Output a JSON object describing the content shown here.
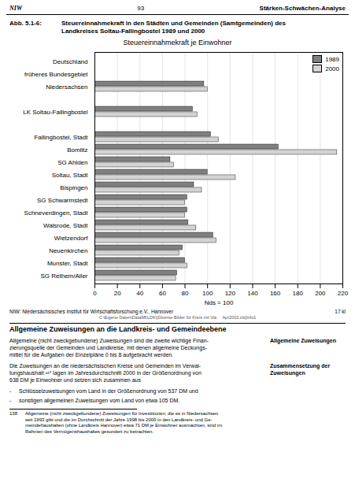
{
  "chart_data": {
    "type": "bar",
    "orientation": "horizontal",
    "title": "Steuereinnahmekraft je Einwohner",
    "xlabel": "Nds = 100",
    "categories": [
      "Deutschland",
      "früheres Bundesgebiet",
      "Niedersachsen",
      null,
      "LK Soltau-Fallingbostel",
      null,
      "Fallingbostel, Stadt",
      "Bomlitz",
      "SG Ahlden",
      "Soltau, Stadt",
      "Bispingen",
      "SG Schwarmstedt",
      "Schneverdingen, Stadt",
      "Walsrode, Stadt",
      "Wietzendorf",
      "Neuenkirchen",
      "Munster, Stadt",
      "SG Rethem/Aller"
    ],
    "series": [
      {
        "name": "1989",
        "color": "#808080",
        "values": [
          null,
          null,
          97,
          null,
          87,
          null,
          103,
          163,
          67,
          100,
          88,
          82,
          82,
          83,
          105,
          78,
          80,
          73
        ]
      },
      {
        "name": "2000",
        "color": "#d3d3d3",
        "values": [
          null,
          null,
          100,
          null,
          91,
          null,
          110,
          215,
          70,
          125,
          95,
          80,
          80,
          90,
          108,
          75,
          82,
          72
        ]
      }
    ],
    "xlim": [
      0,
      220
    ],
    "xticks": [
      0,
      20,
      40,
      60,
      80,
      100,
      120,
      140,
      160,
      180,
      200,
      220
    ],
    "grid": true,
    "legend": "upper right",
    "annotations": [
      "NIW",
      "93",
      "Stärken-Schwächen-Analyse",
      "Abb. 5.1-6:",
      "Steuereinnahmekraft in den Städten und Gemeinden (Samtgemeinden) des",
      "Landkreises Soltau-Fallingbostel 1989 und 2000",
      "NIW: Niedersächsisches Institut für Wirtschaftsforschung e.V., Hannover",
      "17 kl",
      "C:\\Eigene Daten\\Data98\\LDK\\[Diverse Bilder für Kreis mit Via     Apr2002.xls]Info1",
      "Allgemeine Zuweisungen an die Landkreis- und Gemeindeebene",
      "Allgemeine Zuweisungen",
      "Allgemeine (nicht zweckgebundene) Zuweisungen sind die zweite wichtige Finan-",
      "zierungsquelle der Gemeinden und Landkreise, mit denen allgemeine Deckungs-",
      "mittel für die Aufgaben der Einzelpläne 0 bis 8 aufgebracht werden.",
      "Zusammensetzung der",
      "Zuweisungen",
      "Die Zuweisungen an die niedersächsischen Kreise und Gemeinden im Verwal-",
      "tungshaushalt ¹³⁸ lagen im Jahresdurchschnitt 2000 in der Größenordnung von",
      "638 DM je Einwohner und setzen sich zusammen aus",
      "-",
      "Schlüsselzuweisungen vom Land in der Größenordnung von 537 DM und",
      "-",
      "sonstigen allgemeinen Zuweisungen vom Land von etwa 105 DM.",
      "138",
      "Allgemeine (nicht zweckgebundene) Zuweisungen für Investitionen, die es in Niedersachsen",
      "seit 1993 gibt und die im Durchschnitt der Jahre 1998 bis 2000 in den Landkreis- und Ge-",
      "meindehaushalten (ohne Landkreis Hannover) etwa 71 DM je Einwohner ausmachten, sind im",
      "Rahmen des Vermögenshaushaltes gesondert zu betrachten."
    ]
  }
}
